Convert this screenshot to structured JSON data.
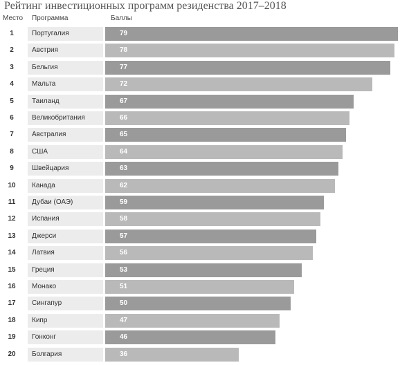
{
  "title": "Рейтинг инвестиционных программ резиденства 2017–2018",
  "headers": {
    "rank": "Место",
    "program": "Программа",
    "score": "Баллы"
  },
  "colors": {
    "bar_dark": "#9a9a9a",
    "bar_light": "#b9b9b9",
    "label_bg": "#ececec"
  },
  "chart_data": {
    "type": "bar",
    "title": "Рейтинг инвестиционных программ резиденства 2017–2018",
    "xlabel": "Баллы",
    "ylabel": "Программа",
    "ranks": [
      1,
      2,
      3,
      4,
      5,
      6,
      7,
      8,
      9,
      10,
      11,
      12,
      13,
      14,
      15,
      16,
      17,
      18,
      19,
      20
    ],
    "categories": [
      "Португалия",
      "Австрия",
      "Бельгия",
      "Мальта",
      "Таиланд",
      "Великобритания",
      "Австралия",
      "США",
      "Швейцария",
      "Канада",
      "Дубаи (ОАЭ)",
      "Испания",
      "Джерси",
      "Латвия",
      "Греция",
      "Монако",
      "Сингапур",
      "Кипр",
      "Гонконг",
      "Болгария"
    ],
    "values": [
      79,
      78,
      77,
      72,
      67,
      66,
      65,
      64,
      63,
      62,
      59,
      58,
      57,
      56,
      53,
      51,
      50,
      47,
      46,
      36
    ]
  }
}
